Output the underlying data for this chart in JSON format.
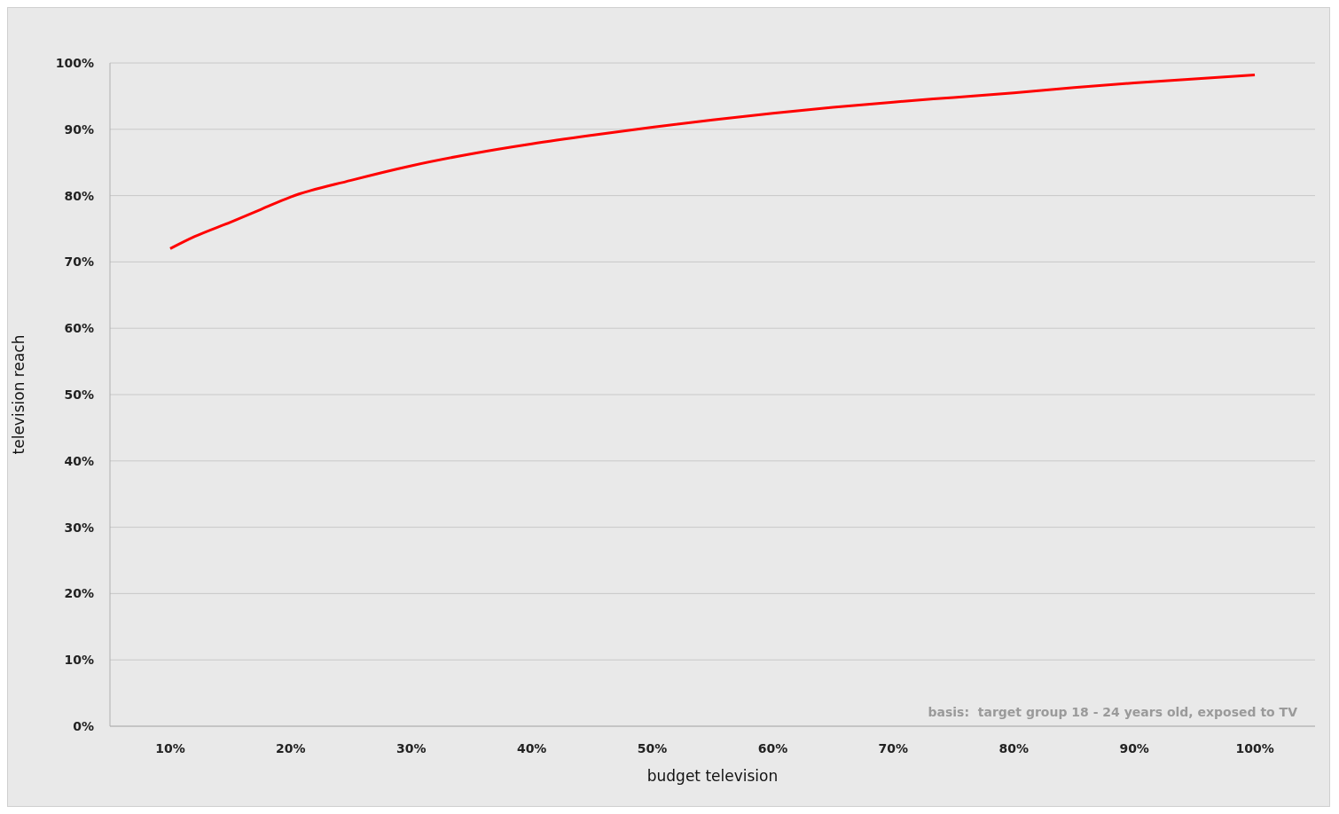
{
  "chart_data": {
    "type": "line",
    "xlabel": "budget television",
    "ylabel": "television reach",
    "x": [
      10,
      12,
      15,
      17.5,
      20,
      25,
      30,
      35,
      40,
      45,
      50,
      55,
      60,
      65,
      70,
      75,
      80,
      85,
      90,
      95,
      100
    ],
    "series": [
      {
        "color": "#ff0000",
        "values": [
          72,
          73.8,
          76,
          77.9,
          79.8,
          82.3,
          84.5,
          86.3,
          87.8,
          89.1,
          90.3,
          91.4,
          92.4,
          93.3,
          94.1,
          94.8,
          95.5,
          96.3,
          97,
          97.6,
          98.2
        ]
      }
    ],
    "xlim": [
      5,
      105
    ],
    "xticks": [
      {
        "value": 10,
        "label": "10%"
      },
      {
        "value": 20,
        "label": "20%"
      },
      {
        "value": 30,
        "label": "30%"
      },
      {
        "value": 40,
        "label": "40%"
      },
      {
        "value": 50,
        "label": "50%"
      },
      {
        "value": 60,
        "label": "60%"
      },
      {
        "value": 70,
        "label": "70%"
      },
      {
        "value": 80,
        "label": "80%"
      },
      {
        "value": 90,
        "label": "90%"
      },
      {
        "value": 100,
        "label": "100%"
      }
    ],
    "ylim": [
      0,
      100
    ],
    "yticks": [
      {
        "value": 0,
        "label": "0%"
      },
      {
        "value": 10,
        "label": "10%"
      },
      {
        "value": 20,
        "label": "20%"
      },
      {
        "value": 30,
        "label": "30%"
      },
      {
        "value": 40,
        "label": "40%"
      },
      {
        "value": 50,
        "label": "50%"
      },
      {
        "value": 60,
        "label": "60%"
      },
      {
        "value": 70,
        "label": "70%"
      },
      {
        "value": 80,
        "label": "80%"
      },
      {
        "value": 90,
        "label": "90%"
      },
      {
        "value": 100,
        "label": "100%"
      }
    ],
    "grid": "y",
    "marker": "none",
    "line_style": "solid",
    "annotations": [
      "basis:  target group 18 - 24 years old, exposed to TV"
    ]
  }
}
